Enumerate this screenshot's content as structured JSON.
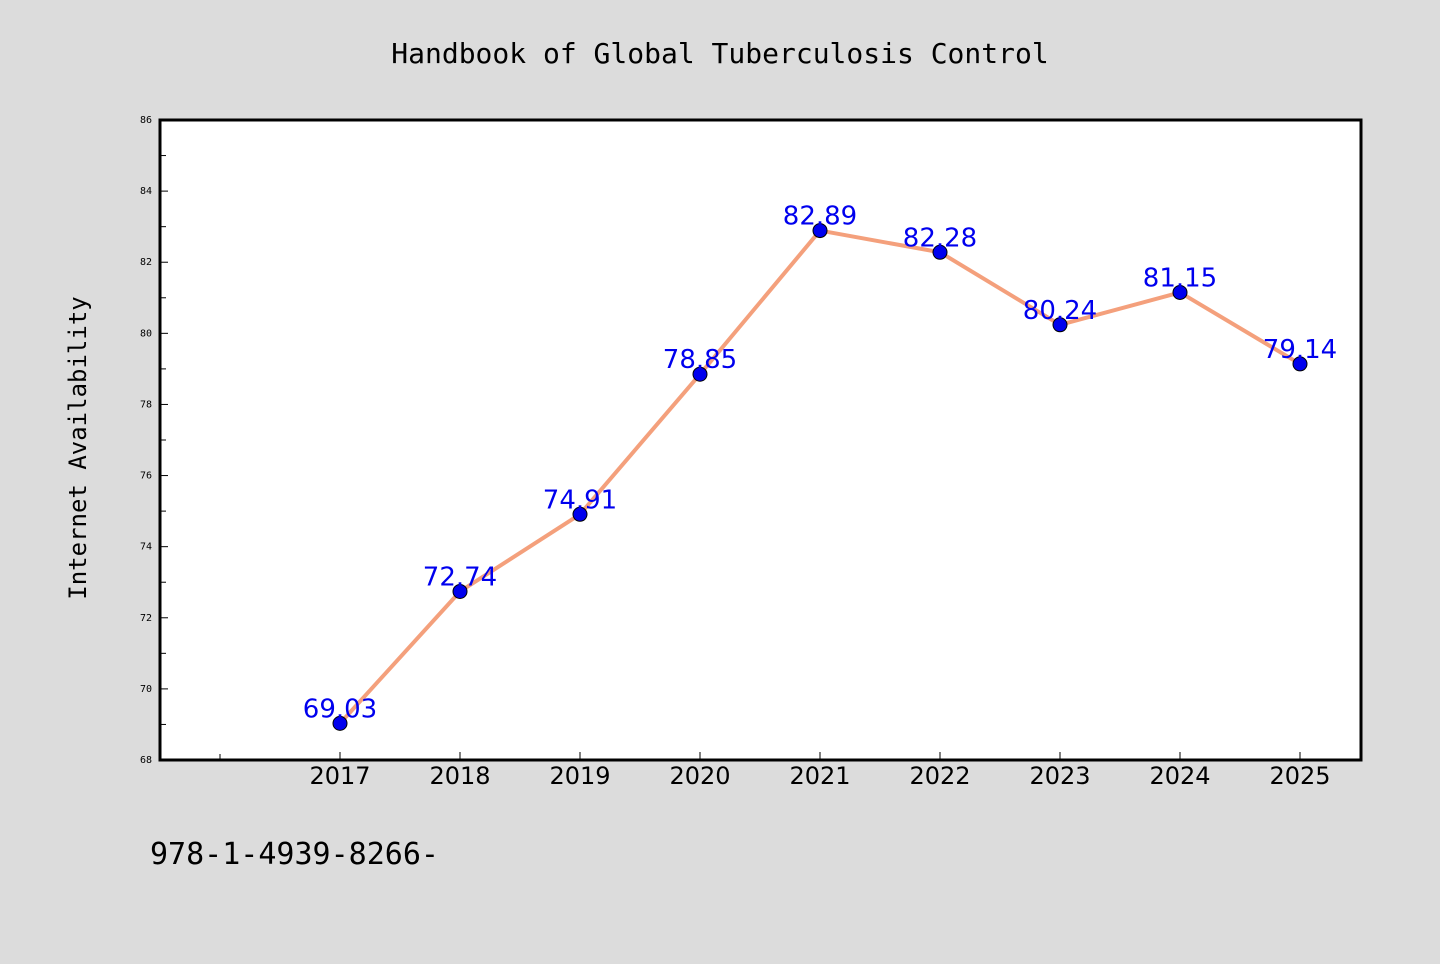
{
  "chart_data": {
    "type": "line",
    "title": "Handbook of Global Tuberculosis Control",
    "ylabel": "Internet Availability",
    "xlabel": "",
    "categories": [
      "2017",
      "2018",
      "2019",
      "2020",
      "2021",
      "2022",
      "2023",
      "2024",
      "2025"
    ],
    "series": [
      {
        "values": [
          69.03,
          72.74,
          74.91,
          78.85,
          82.89,
          82.28,
          80.24,
          81.15,
          79.14
        ],
        "labels": [
          "69.03",
          "72.74",
          "74.91",
          "78.85",
          "82.89",
          "82.28",
          "80.24",
          "81.15",
          "79.14"
        ],
        "line_color": "#f4a07c",
        "marker_color": "#0000ee",
        "label_color": "#0000ee"
      }
    ],
    "ylim": [
      68,
      86
    ],
    "yticks": [
      "68",
      "70",
      "72",
      "74",
      "76",
      "78",
      "80",
      "82",
      "84",
      "86"
    ],
    "grid": false,
    "legend": "none"
  },
  "footer": {
    "isbn": "978-1-4939-8266-"
  },
  "colors": {
    "background": "#dcdcdc",
    "plot_area": "#ffffff",
    "axis": "#000000"
  }
}
